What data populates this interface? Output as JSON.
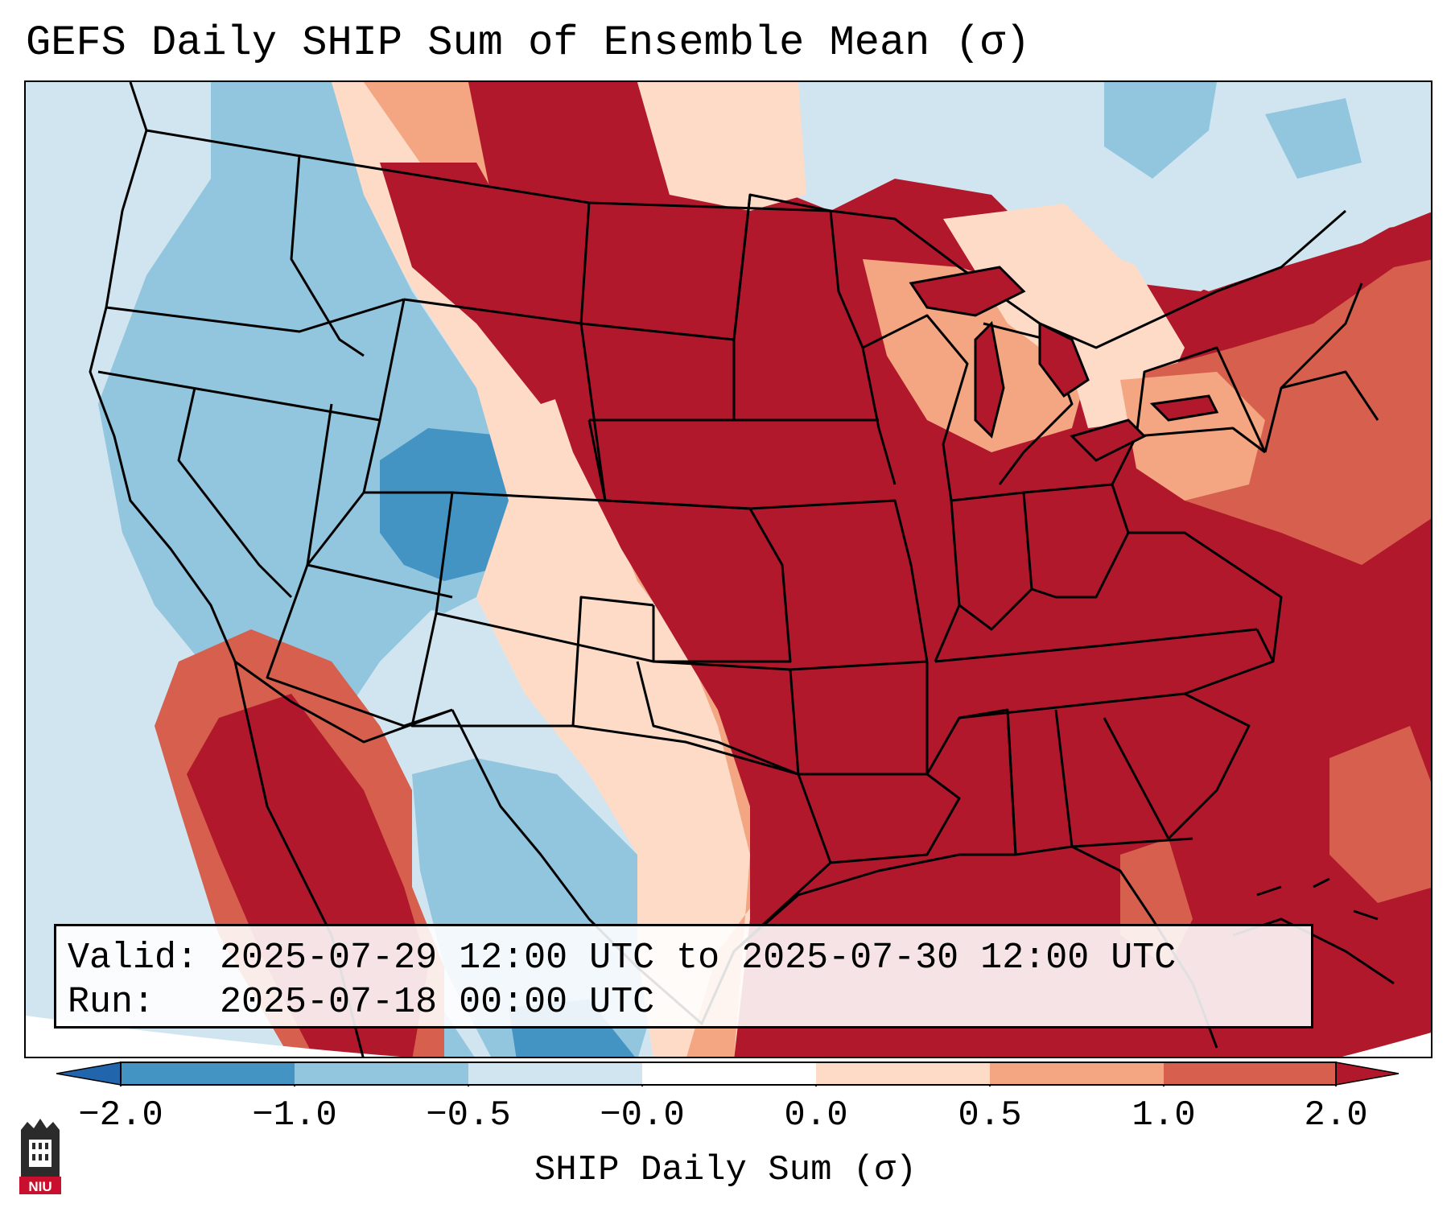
{
  "title": "GEFS Daily SHIP Sum of Ensemble Mean (σ)",
  "info": {
    "valid_line": "Valid: 2025-07-29 12:00 UTC to 2025-07-30 12:00 UTC",
    "run_line": "Run:   2025-07-18 00:00 UTC"
  },
  "colorbar": {
    "label": "SHIP Daily Sum (σ)",
    "ticks": [
      "−2.0",
      "−1.0",
      "−0.5",
      "−0.0",
      "0.0",
      "0.5",
      "1.0",
      "2.0"
    ],
    "colors": {
      "lt_-2": "#2166ac",
      "-2_-1": "#4393c3",
      "-1_-0.5": "#92c5de",
      "-0.5_0": "#d1e5f0",
      "0_0.5": "#fddbc7",
      "0.5_1": "#f4a582",
      "1_2": "#d6604d",
      "gt_2": "#b2182b"
    }
  },
  "logo": {
    "text": "NIU",
    "icon": "university-tower-icon",
    "color": "#c8102e"
  },
  "map": {
    "region": "Contiguous United States",
    "colormap": "RdBu_r"
  }
}
